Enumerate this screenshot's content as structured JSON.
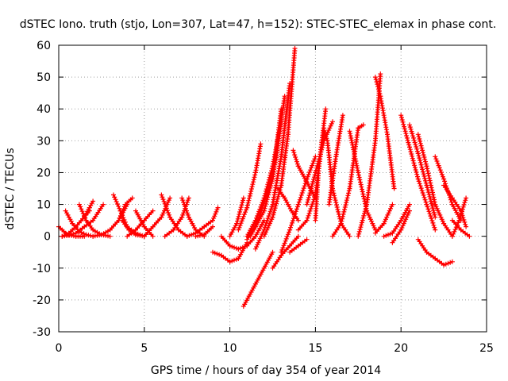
{
  "chart_data": {
    "type": "scatter",
    "title": "dSTEC Iono. truth (stjo, Lon=307, Lat=47, h=152): STEC-STEC_elemax in phase cont.",
    "xlabel": "GPS time / hours of day 354 of year 2014",
    "ylabel": "dSTEC  / TECUs",
    "xlim": [
      0,
      25
    ],
    "ylim": [
      -30,
      60
    ],
    "xticks": [
      "0",
      "5",
      "10",
      "15",
      "20",
      "25"
    ],
    "yticks": [
      "-30",
      "-20",
      "-10",
      "0",
      "10",
      "20",
      "30",
      "40",
      "50",
      "60"
    ],
    "grid": true,
    "marker": "+",
    "color": "#ff0000",
    "series": [
      {
        "x": [
          0.0,
          0.5,
          1.0,
          1.5
        ],
        "y": [
          3,
          0.5,
          0,
          0
        ]
      },
      {
        "x": [
          0.2,
          0.6,
          1.0,
          1.4,
          1.8
        ],
        "y": [
          0,
          1,
          3,
          5.5,
          8
        ]
      },
      {
        "x": [
          0.2,
          0.6,
          1.0,
          1.5,
          2.0,
          2.6
        ],
        "y": [
          0,
          0.3,
          1,
          3,
          5,
          10
        ]
      },
      {
        "x": [
          0.4,
          0.8,
          1.2,
          1.6,
          2.0
        ],
        "y": [
          8,
          4,
          1.5,
          0.5,
          0
        ]
      },
      {
        "x": [
          1.2,
          1.6,
          2.0,
          2.5,
          3.0
        ],
        "y": [
          10,
          5,
          2,
          0.5,
          0
        ]
      },
      {
        "x": [
          1.5,
          1.8,
          2.0
        ],
        "y": [
          6,
          9,
          11
        ]
      },
      {
        "x": [
          2.0,
          2.5,
          3.0,
          3.5,
          4.0
        ],
        "y": [
          0,
          0.5,
          2,
          5,
          10
        ]
      },
      {
        "x": [
          3.2,
          3.6,
          4.0,
          4.5,
          5.0
        ],
        "y": [
          13,
          8,
          3,
          1,
          0
        ]
      },
      {
        "x": [
          3.5,
          3.9,
          4.3
        ],
        "y": [
          5,
          10,
          12
        ]
      },
      {
        "x": [
          3.7,
          4.1,
          4.5,
          5.0
        ],
        "y": [
          5,
          2,
          0.5,
          0
        ]
      },
      {
        "x": [
          4.0,
          4.5,
          5.0,
          5.5
        ],
        "y": [
          0,
          2,
          5,
          8
        ]
      },
      {
        "x": [
          4.5,
          5.0,
          5.5
        ],
        "y": [
          8,
          3,
          0
        ]
      },
      {
        "x": [
          5.0,
          5.5,
          6.0,
          6.5
        ],
        "y": [
          0,
          3,
          6,
          12
        ]
      },
      {
        "x": [
          6.0,
          6.5,
          7.0,
          7.5
        ],
        "y": [
          13,
          6,
          2,
          0
        ]
      },
      {
        "x": [
          6.2,
          6.7,
          7.2,
          7.6
        ],
        "y": [
          0,
          2,
          6,
          12
        ]
      },
      {
        "x": [
          7.2,
          7.6,
          8.0,
          8.5
        ],
        "y": [
          12,
          6,
          2,
          0
        ]
      },
      {
        "x": [
          7.5,
          8.0,
          8.5,
          9.0,
          9.3
        ],
        "y": [
          0,
          1,
          3,
          5,
          9
        ]
      },
      {
        "x": [
          8.0,
          8.5,
          9.0
        ],
        "y": [
          0,
          0.5,
          3
        ]
      },
      {
        "x": [
          9.0,
          9.5,
          10.0,
          10.5,
          11.0
        ],
        "y": [
          -5,
          -6,
          -8,
          -7,
          -2
        ]
      },
      {
        "x": [
          9.5,
          10.0,
          10.5,
          11.0,
          11.5,
          12.0
        ],
        "y": [
          0,
          -3,
          -4,
          -3,
          0,
          5
        ]
      },
      {
        "x": [
          10.0,
          10.4,
          10.8
        ],
        "y": [
          0,
          4,
          12
        ]
      },
      {
        "x": [
          10.5,
          11.0,
          11.5,
          11.8
        ],
        "y": [
          2,
          9,
          20,
          29
        ]
      },
      {
        "x": [
          10.8,
          11.5,
          12.0,
          12.5
        ],
        "y": [
          -22,
          -15,
          -10,
          -5
        ]
      },
      {
        "x": [
          11.0,
          11.5,
          12.0,
          12.5,
          13.0
        ],
        "y": [
          0,
          5,
          12,
          22,
          36
        ]
      },
      {
        "x": [
          11.0,
          11.5,
          12.0,
          12.5,
          13.0
        ],
        "y": [
          -1,
          3,
          8,
          18,
          40
        ]
      },
      {
        "x": [
          11.2,
          11.7,
          12.2,
          12.7,
          13.2
        ],
        "y": [
          0,
          6,
          14,
          24,
          44
        ]
      },
      {
        "x": [
          11.5,
          12.0,
          12.5,
          13.0,
          13.5
        ],
        "y": [
          -4,
          2,
          10,
          25,
          48
        ]
      },
      {
        "x": [
          12.0,
          12.5,
          13.0,
          13.4,
          13.8
        ],
        "y": [
          0,
          6,
          16,
          32,
          59
        ]
      },
      {
        "x": [
          12.5,
          13.0,
          13.5,
          14.0
        ],
        "y": [
          -10,
          -6,
          -3,
          0
        ]
      },
      {
        "x": [
          12.8,
          13.2,
          13.6,
          14.0
        ],
        "y": [
          15,
          12,
          8,
          5
        ]
      },
      {
        "x": [
          13.0,
          13.5,
          14.0,
          14.5,
          15.0
        ],
        "y": [
          -5,
          2,
          10,
          18,
          25
        ]
      },
      {
        "x": [
          13.5,
          14.0,
          14.5
        ],
        "y": [
          -5,
          -3,
          -1
        ]
      },
      {
        "x": [
          13.7,
          14.0,
          14.5,
          15.0
        ],
        "y": [
          27,
          22,
          17,
          12
        ]
      },
      {
        "x": [
          14.0,
          14.5,
          15.0,
          15.5
        ],
        "y": [
          2,
          5,
          13,
          34
        ]
      },
      {
        "x": [
          14.5,
          15.0,
          15.5,
          16.0
        ],
        "y": [
          10,
          20,
          30,
          36
        ]
      },
      {
        "x": [
          15.0,
          15.2,
          15.6
        ],
        "y": [
          5,
          22,
          40
        ]
      },
      {
        "x": [
          15.5,
          15.7,
          16.0,
          16.5,
          17.0
        ],
        "y": [
          33,
          30,
          15,
          4,
          0
        ]
      },
      {
        "x": [
          15.8,
          16.2,
          16.6
        ],
        "y": [
          10,
          25,
          38
        ]
      },
      {
        "x": [
          16.0,
          16.5,
          17.0,
          17.5,
          17.8
        ],
        "y": [
          0,
          4,
          15,
          34,
          35
        ]
      },
      {
        "x": [
          17.0,
          17.5,
          18.0,
          18.5
        ],
        "y": [
          33,
          20,
          8,
          2
        ]
      },
      {
        "x": [
          17.5,
          18.0,
          18.5,
          18.8
        ],
        "y": [
          0,
          10,
          30,
          51
        ]
      },
      {
        "x": [
          18.5,
          18.8,
          19.2,
          19.6
        ],
        "y": [
          50,
          44,
          32,
          15
        ]
      },
      {
        "x": [
          18.5,
          19.0,
          19.5
        ],
        "y": [
          1,
          4,
          10
        ]
      },
      {
        "x": [
          19.0,
          19.5,
          20.0,
          20.5
        ],
        "y": [
          0,
          1,
          5,
          10
        ]
      },
      {
        "x": [
          19.5,
          20.0,
          20.5
        ],
        "y": [
          -2,
          2,
          8
        ]
      },
      {
        "x": [
          20.0,
          20.5,
          21.0,
          21.5,
          22.0
        ],
        "y": [
          38,
          28,
          18,
          10,
          2
        ]
      },
      {
        "x": [
          20.5,
          21.0,
          21.5,
          22.0
        ],
        "y": [
          35,
          26,
          16,
          6
        ]
      },
      {
        "x": [
          21.0,
          21.5,
          22.0,
          22.5,
          23.0
        ],
        "y": [
          32,
          22,
          10,
          4,
          0
        ]
      },
      {
        "x": [
          21.0,
          21.5,
          22.0,
          22.5,
          23.0
        ],
        "y": [
          -1,
          -5,
          -7,
          -9,
          -8
        ]
      },
      {
        "x": [
          22.0,
          22.5,
          23.0,
          23.5
        ],
        "y": [
          25,
          18,
          10,
          5
        ]
      },
      {
        "x": [
          22.5,
          23.0,
          23.5,
          23.8
        ],
        "y": [
          16,
          12,
          8,
          3
        ]
      },
      {
        "x": [
          23.0,
          23.4,
          23.8
        ],
        "y": [
          0,
          5,
          12
        ]
      },
      {
        "x": [
          23.0,
          23.5,
          24.0
        ],
        "y": [
          5,
          2,
          0
        ]
      }
    ]
  }
}
